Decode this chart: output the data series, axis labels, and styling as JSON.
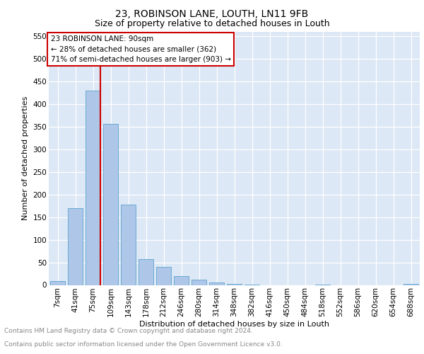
{
  "title_line1": "23, ROBINSON LANE, LOUTH, LN11 9FB",
  "title_line2": "Size of property relative to detached houses in Louth",
  "xlabel": "Distribution of detached houses by size in Louth",
  "ylabel": "Number of detached properties",
  "bar_labels": [
    "7sqm",
    "41sqm",
    "75sqm",
    "109sqm",
    "143sqm",
    "178sqm",
    "212sqm",
    "246sqm",
    "280sqm",
    "314sqm",
    "348sqm",
    "382sqm",
    "416sqm",
    "450sqm",
    "484sqm",
    "518sqm",
    "552sqm",
    "586sqm",
    "620sqm",
    "654sqm",
    "688sqm"
  ],
  "bar_values": [
    8,
    170,
    430,
    357,
    178,
    57,
    40,
    20,
    12,
    6,
    2,
    1,
    0,
    0,
    0,
    1,
    0,
    0,
    0,
    0,
    3
  ],
  "bar_color": "#aec6e8",
  "bar_edge_color": "#6aaad4",
  "grid_color": "#c8d8e8",
  "property_label": "23 ROBINSON LANE: 90sqm",
  "annotation_line2": "← 28% of detached houses are smaller (362)",
  "annotation_line3": "71% of semi-detached houses are larger (903) →",
  "vline_x_index": 2,
  "vline_color": "#cc0000",
  "box_color": "#cc0000",
  "ylim": [
    0,
    560
  ],
  "yticks": [
    0,
    50,
    100,
    150,
    200,
    250,
    300,
    350,
    400,
    450,
    500,
    550
  ],
  "footnote_line1": "Contains HM Land Registry data © Crown copyright and database right 2024.",
  "footnote_line2": "Contains public sector information licensed under the Open Government Licence v3.0.",
  "footnote_color": "#888888",
  "background_color": "#dce8f5",
  "title1_fontsize": 10,
  "title2_fontsize": 9,
  "ylabel_fontsize": 8,
  "xlabel_fontsize": 8,
  "tick_fontsize": 7.5,
  "annot_fontsize": 7.5,
  "footnote_fontsize": 6.5
}
